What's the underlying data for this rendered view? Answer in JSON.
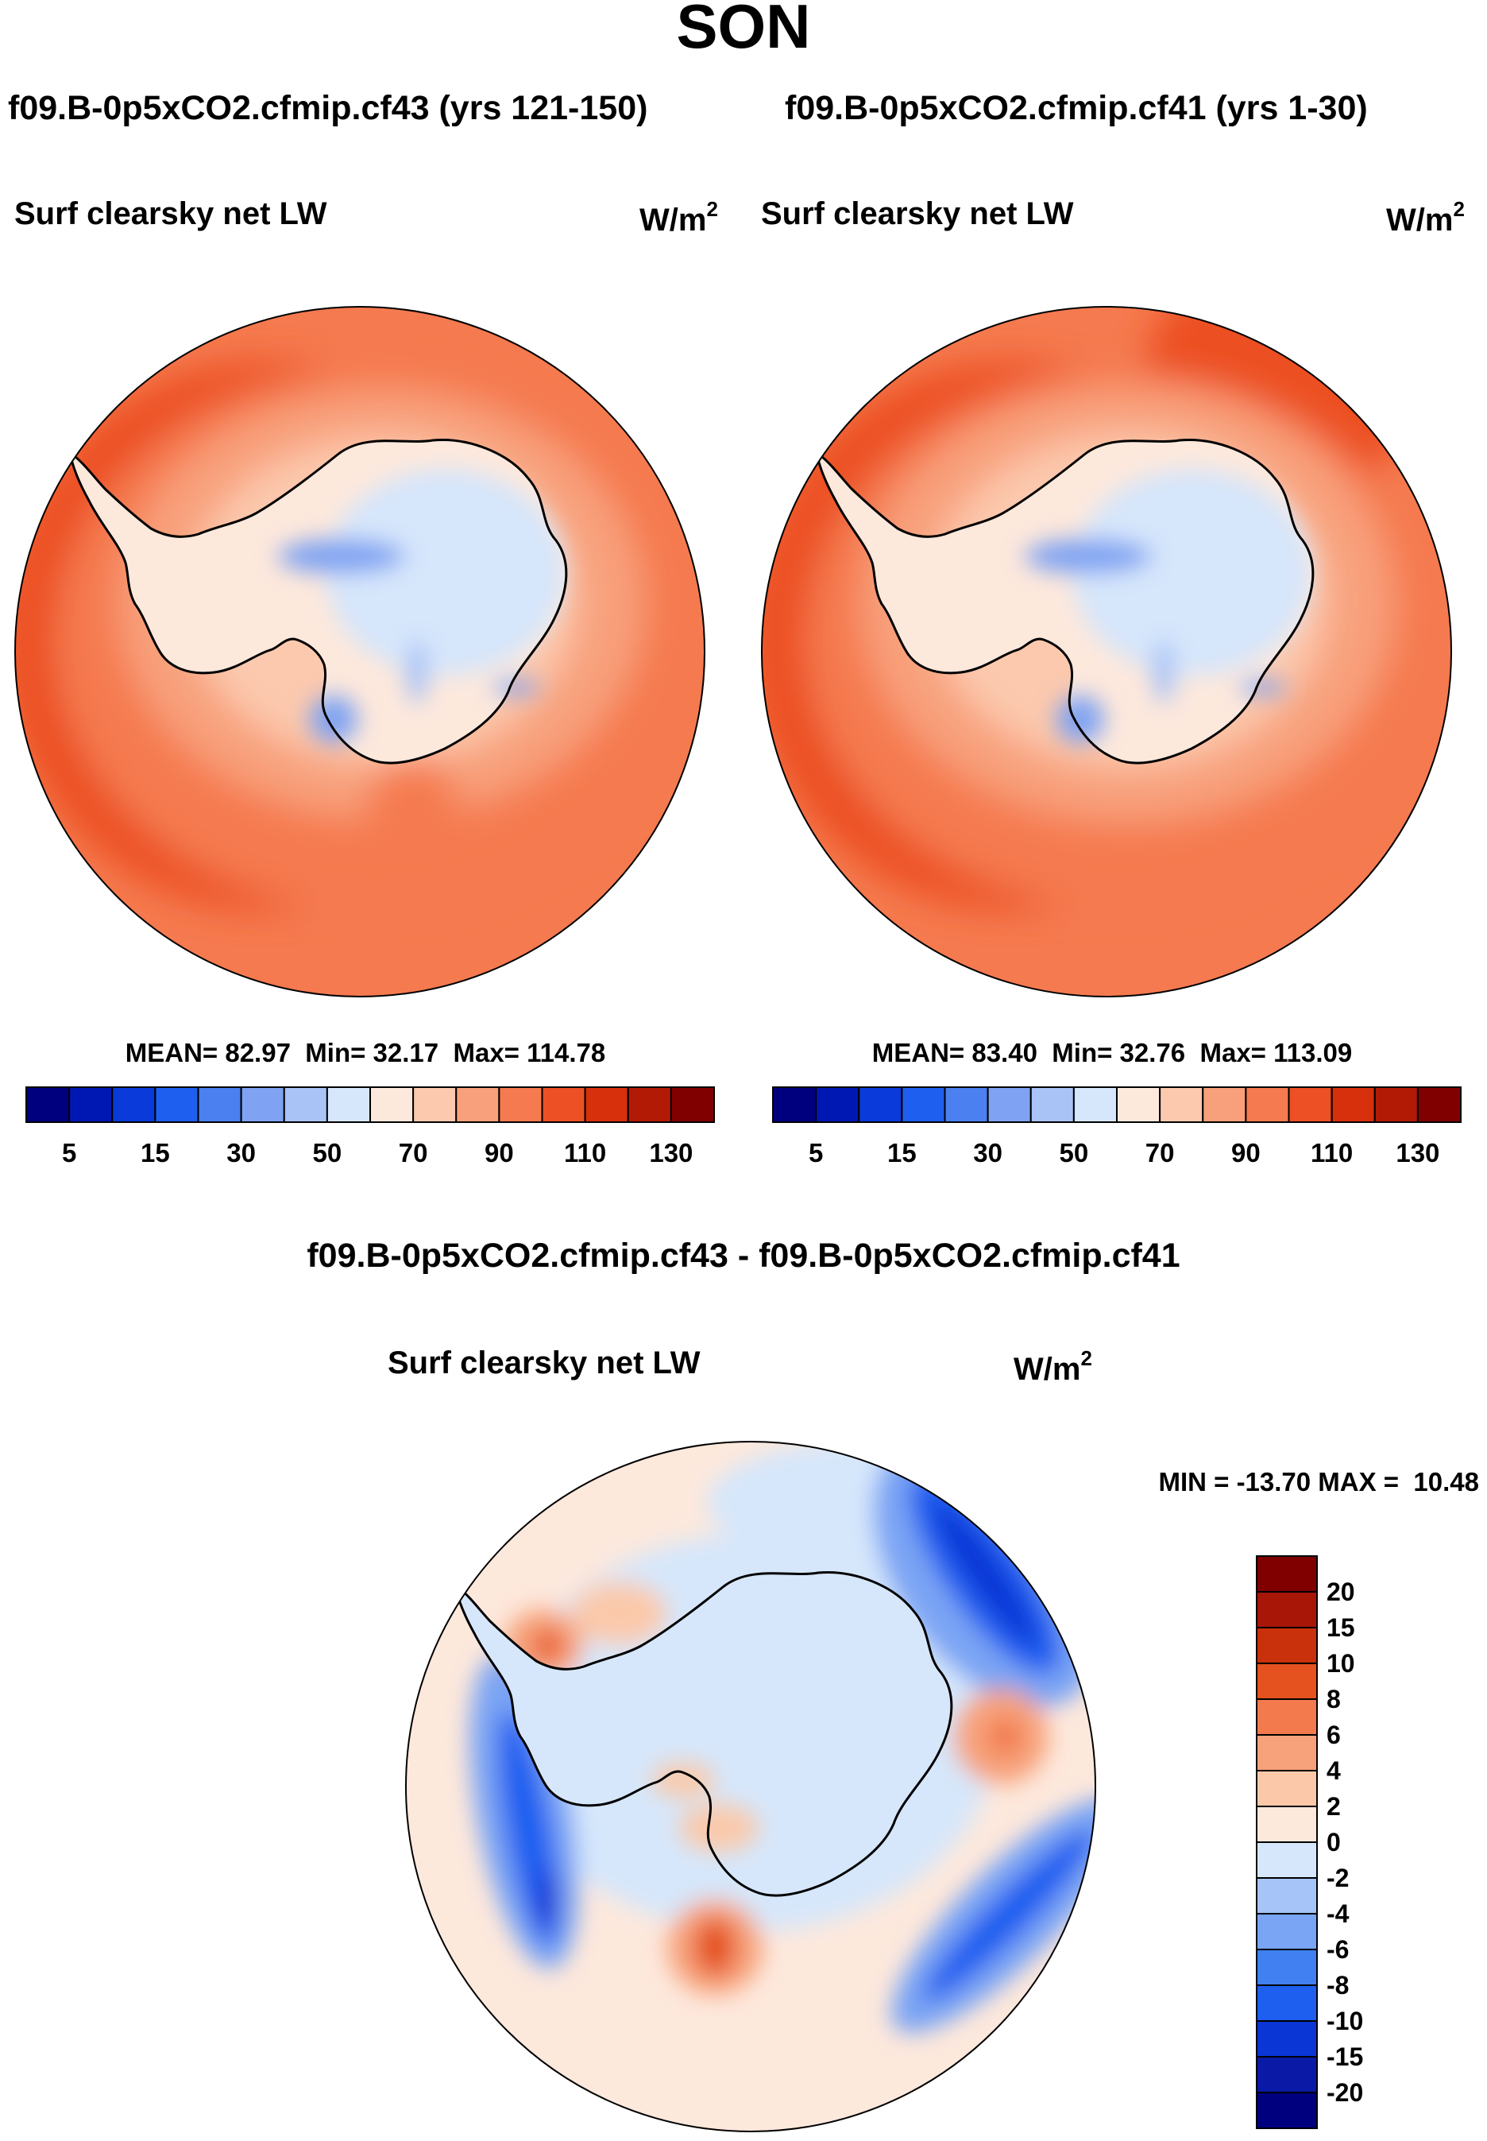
{
  "figure_title": "SON",
  "panels": [
    {
      "case_title": "f09.B-0p5xCO2.cfmip.cf43 (yrs 121-150)",
      "variable": "Surf clearsky net LW",
      "units_base": "W/m",
      "units_exp": "2",
      "stats": {
        "mean_label": "MEAN=",
        "mean": "82.97",
        "min_label": "Min=",
        "min": "32.17",
        "max_label": "Max=",
        "max": "114.78"
      }
    },
    {
      "case_title": "f09.B-0p5xCO2.cfmip.cf41 (yrs 1-30)",
      "variable": "Surf clearsky net LW",
      "units_base": "W/m",
      "units_exp": "2",
      "stats": {
        "mean_label": "MEAN=",
        "mean": "83.40",
        "min_label": "Min=",
        "min": "32.76",
        "max_label": "Max=",
        "max": "113.09"
      }
    }
  ],
  "diff_panel": {
    "title": "f09.B-0p5xCO2.cfmip.cf43 - f09.B-0p5xCO2.cfmip.cf41",
    "variable": "Surf clearsky net LW",
    "units_base": "W/m",
    "units_exp": "2",
    "minmax": "MIN = -13.70 MAX =  10.48"
  },
  "colors": {
    "abs_scale": [
      "#00007f",
      "#0018b3",
      "#0a3ad9",
      "#1f5ff0",
      "#4a80ef",
      "#7fa3f2",
      "#a9c3f7",
      "#d6e6fb",
      "#fde8dc",
      "#fcc9ae",
      "#f8a07b",
      "#f57a4f",
      "#ec5024",
      "#d6300d",
      "#b31a06",
      "#800000"
    ],
    "diff_scale": [
      "#00007f",
      "#0a1aa6",
      "#0a36d6",
      "#1f5ff0",
      "#4080f0",
      "#7aa4f4",
      "#a6c4f8",
      "#d6e7fb",
      "#fde8dc",
      "#fbc9aa",
      "#f7a27a",
      "#f27a4d",
      "#e5521f",
      "#c9300c",
      "#a81608",
      "#800000"
    ],
    "coast": "#000000"
  },
  "chart_data": [
    {
      "type": "heatmap",
      "projection": "south-polar-stereographic",
      "title": "f09.B-0p5xCO2.cfmip.cf43 (yrs 121-150)",
      "variable": "Surf clearsky net LW",
      "units": "W/m2",
      "stats": {
        "mean": 82.97,
        "min": 32.17,
        "max": 114.78
      },
      "colorbar_ticks": [
        5,
        15,
        30,
        50,
        70,
        90,
        110,
        130
      ],
      "colorbar_levels": [
        5,
        10,
        15,
        20,
        30,
        40,
        50,
        60,
        70,
        80,
        90,
        100,
        110,
        120,
        130
      ]
    },
    {
      "type": "heatmap",
      "projection": "south-polar-stereographic",
      "title": "f09.B-0p5xCO2.cfmip.cf41 (yrs 1-30)",
      "variable": "Surf clearsky net LW",
      "units": "W/m2",
      "stats": {
        "mean": 83.4,
        "min": 32.76,
        "max": 113.09
      },
      "colorbar_ticks": [
        5,
        15,
        30,
        50,
        70,
        90,
        110,
        130
      ],
      "colorbar_levels": [
        5,
        10,
        15,
        20,
        30,
        40,
        50,
        60,
        70,
        80,
        90,
        100,
        110,
        120,
        130
      ]
    },
    {
      "type": "heatmap",
      "projection": "south-polar-stereographic",
      "title": "f09.B-0p5xCO2.cfmip.cf43 - f09.B-0p5xCO2.cfmip.cf41",
      "variable": "Surf clearsky net LW",
      "units": "W/m2",
      "stats": {
        "min": -13.7,
        "max": 10.48
      },
      "colorbar_ticks": [
        20,
        15,
        10,
        8,
        6,
        4,
        2,
        0,
        -2,
        -4,
        -6,
        -8,
        -10,
        -15,
        -20
      ],
      "colorbar_orientation": "vertical"
    }
  ]
}
